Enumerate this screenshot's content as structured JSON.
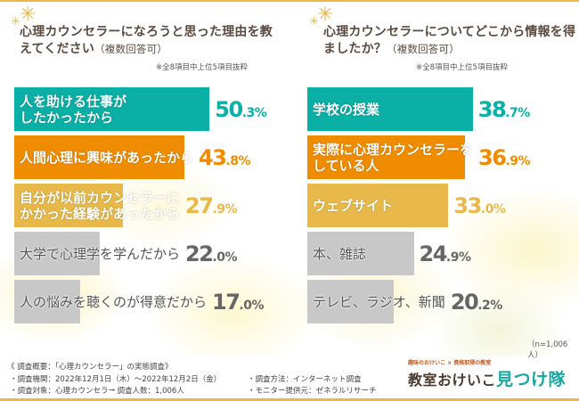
{
  "chart_data": [
    {
      "type": "bar",
      "orientation": "horizontal",
      "title": "心理カウンセラーになろうと思った理由を教えてください",
      "subtitle": "（複数回答可）",
      "note": "※全8項目中上位5項目抜粋",
      "categories": [
        "人を助ける仕事がしたかったから",
        "人間心理に興味があったから",
        "自分が以前カウンセラーにかかった経験があったから",
        "大学で心理学を学んだから",
        "人の悩みを聴くのが得意だから"
      ],
      "label_lines": [
        [
          "人を助ける仕事が",
          "したかったから"
        ],
        [
          "人間心理に興味があったから"
        ],
        [
          "自分が以前カウンセラーに",
          "かかった経験があったから"
        ],
        [
          "大学で心理学を学んだから"
        ],
        [
          "人の悩みを聴くのが得意だから"
        ]
      ],
      "values": [
        50.3,
        43.8,
        27.9,
        22.0,
        17.0
      ],
      "unit": "%",
      "colors": [
        "#0aafa5",
        "#f08c00",
        "#e8b94a",
        "#c8c8c8",
        "#c8c8c8"
      ],
      "value_colors": [
        "#0aafa5",
        "#f08c00",
        "#e8b94a",
        "#666666",
        "#666666"
      ]
    },
    {
      "type": "bar",
      "orientation": "horizontal",
      "title": "心理カウンセラーについてどこから情報を得ましたか？",
      "subtitle": "（複数回答可）",
      "note": "※全8項目中上位5項目抜粋",
      "categories": [
        "学校の授業",
        "実際に心理カウンセラーをしている人",
        "ウェブサイト",
        "本、雑誌",
        "テレビ、ラジオ、新聞"
      ],
      "label_lines": [
        [
          "学校の授業"
        ],
        [
          "実際に心理カウンセラーを",
          "している人"
        ],
        [
          "ウェブサイト"
        ],
        [
          "本、雑誌"
        ],
        [
          "テレビ、ラジオ、新聞"
        ]
      ],
      "values": [
        38.7,
        36.9,
        33.0,
        24.9,
        20.2
      ],
      "unit": "%",
      "colors": [
        "#0aafa5",
        "#f08c00",
        "#e8b94a",
        "#c8c8c8",
        "#c8c8c8"
      ],
      "value_colors": [
        "#0aafa5",
        "#f08c00",
        "#e8b94a",
        "#666666",
        "#666666"
      ]
    }
  ],
  "sample": "（n=1,006人）",
  "footer": {
    "heading": "《 調査概要：「心理カウンセラー」の実態調査》",
    "period": "・調査機関：2022年12月1日（木）～2022年12月2日（金）",
    "target": "・調査対象：心理カウンセラー",
    "count": "・調査人数：1,006人",
    "method": "・調査方法：インターネット調査",
    "provider": "・モニター提供元：ゼネラルリサーチ"
  },
  "logo": {
    "sub": "趣味のおけいこ × 資格取得の教室",
    "main": "教室おけいこ",
    "accent": "見つけ隊"
  }
}
